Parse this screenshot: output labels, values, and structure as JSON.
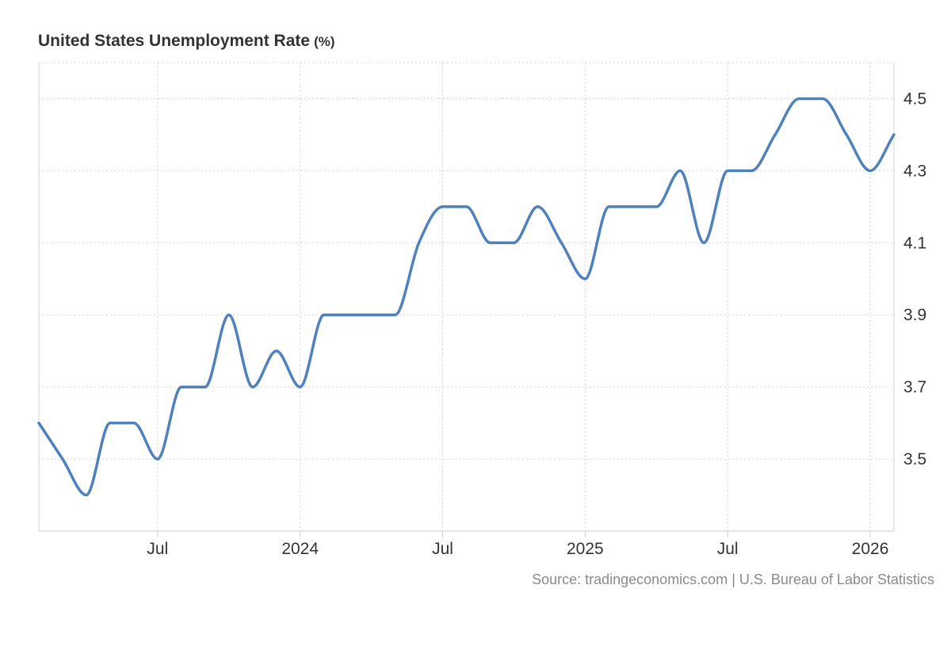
{
  "chart_data": {
    "type": "line",
    "title": "United States Unemployment Rate",
    "unit": "(%)",
    "x_tick_labels": [
      "Jul",
      "2024",
      "Jul",
      "2025",
      "Jul",
      "2026"
    ],
    "x_tick_dates": [
      "2023-07",
      "2024-01",
      "2024-07",
      "2025-01",
      "2025-07",
      "2026-01"
    ],
    "y_tick_labels": [
      "3.5",
      "3.7",
      "3.9",
      "4.1",
      "4.3",
      "4.5"
    ],
    "y_ticks": [
      3.5,
      3.7,
      3.9,
      4.1,
      4.3,
      4.5
    ],
    "x_range": [
      "2023-02",
      "2026-02"
    ],
    "y_range": [
      3.3,
      4.6
    ],
    "y_axis_side": "right",
    "grid": true,
    "line_color": "#4f81bd",
    "series": [
      {
        "x": [
          "2023-02",
          "2023-03",
          "2023-04",
          "2023-05",
          "2023-06",
          "2023-07",
          "2023-08",
          "2023-09",
          "2023-10",
          "2023-11",
          "2023-12",
          "2024-01",
          "2024-02",
          "2024-03",
          "2024-04",
          "2024-05",
          "2024-06",
          "2024-07",
          "2024-08",
          "2024-09",
          "2024-10",
          "2024-11",
          "2024-12",
          "2025-01",
          "2025-02",
          "2025-03",
          "2025-04",
          "2025-05",
          "2025-06",
          "2025-07",
          "2025-08",
          "2025-09",
          "2025-10",
          "2025-11",
          "2025-12",
          "2026-01",
          "2026-02"
        ],
        "values": [
          3.6,
          3.5,
          3.4,
          3.6,
          3.6,
          3.5,
          3.7,
          3.7,
          3.9,
          3.7,
          3.8,
          3.7,
          3.9,
          3.9,
          3.9,
          3.9,
          4.1,
          4.2,
          4.2,
          4.1,
          4.1,
          4.2,
          4.1,
          4.0,
          4.2,
          4.2,
          4.2,
          4.3,
          4.1,
          4.3,
          4.3,
          4.4,
          4.5,
          4.5,
          4.4,
          4.3,
          4.4
        ]
      }
    ]
  },
  "source_text": "Source: tradingeconomics.com | U.S. Bureau of Labor Statistics"
}
